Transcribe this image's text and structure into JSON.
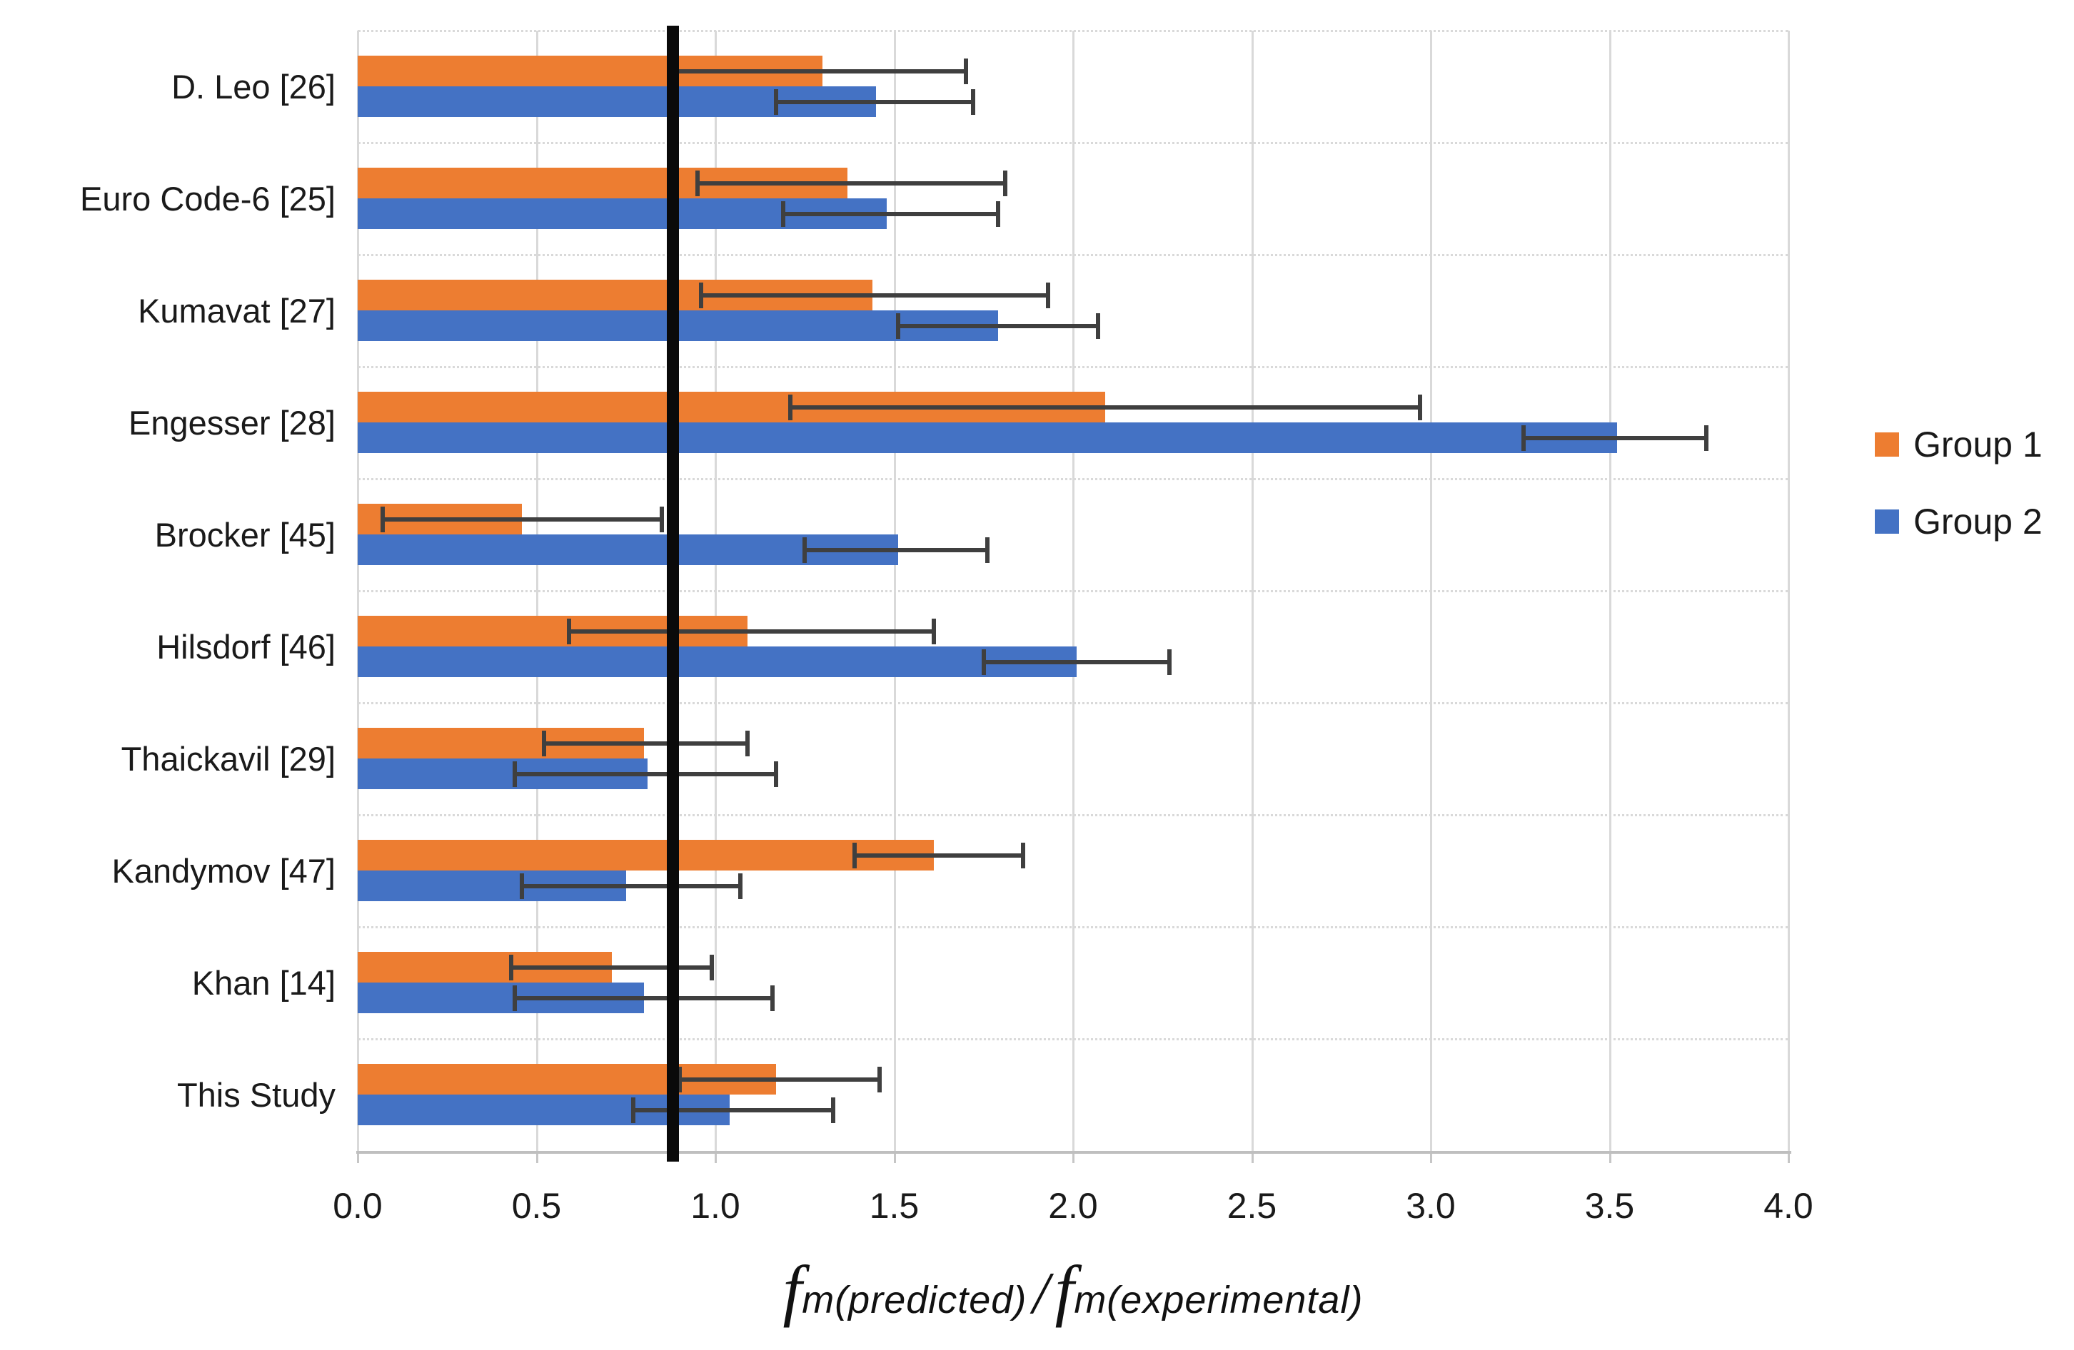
{
  "chart_data": {
    "type": "bar",
    "orientation": "horizontal",
    "xlabel_text": "fm(predicted)/ fm(experimental)",
    "xlabel": {
      "f1": "f",
      "sub1": "m(predicted)",
      "slash": "/",
      "f2": "f",
      "sub2": "m(experimental)"
    },
    "categories": [
      "D. Leo [26]",
      "Euro Code-6 [25]",
      "Kumavat [27]",
      "Engesser [28]",
      "Brocker [45]",
      "Hilsdorf [46]",
      "Thaickavil [29]",
      "Kandymov [47]",
      "Khan [14]",
      "This Study"
    ],
    "series": [
      {
        "name": "Group 1",
        "color": "#ED7D31",
        "values": [
          1.3,
          1.37,
          1.44,
          2.09,
          0.46,
          1.09,
          0.8,
          1.61,
          0.71,
          1.17
        ],
        "error_min": [
          0.89,
          0.95,
          0.96,
          1.21,
          0.07,
          0.59,
          0.52,
          1.39,
          0.43,
          0.9
        ],
        "error_max": [
          1.7,
          1.81,
          1.93,
          2.97,
          0.85,
          1.61,
          1.09,
          1.86,
          0.99,
          1.46
        ]
      },
      {
        "name": "Group 2",
        "color": "#4472C4",
        "values": [
          1.45,
          1.48,
          1.79,
          3.52,
          1.51,
          2.01,
          0.81,
          0.75,
          0.8,
          1.04
        ],
        "error_min": [
          1.17,
          1.19,
          1.51,
          3.26,
          1.25,
          1.75,
          0.44,
          0.46,
          0.44,
          0.77
        ],
        "error_max": [
          1.72,
          1.79,
          2.07,
          3.77,
          1.76,
          2.27,
          1.17,
          1.07,
          1.16,
          1.33
        ]
      }
    ],
    "x_ticks": [
      "0.0",
      "0.5",
      "1.0",
      "1.5",
      "2.0",
      "2.5",
      "3.0",
      "3.5",
      "4.0"
    ],
    "x_tick_values": [
      0,
      0.5,
      1,
      1.5,
      2,
      2.5,
      3,
      3.5,
      4
    ],
    "xlim": [
      0,
      4
    ],
    "reference_line": {
      "value": 0.88,
      "color": "#0a0a0a"
    },
    "grid": {
      "vertical": true,
      "horizontal_band_dividers": true
    },
    "legend": {
      "position": "right",
      "entries": [
        "Group 1",
        "Group 2"
      ]
    },
    "colors": {
      "gridline": "#d9d9d9",
      "axis_line": "#bfbfbf",
      "error_bar": "#3f3f3f",
      "text": "#1a1a1a"
    }
  }
}
